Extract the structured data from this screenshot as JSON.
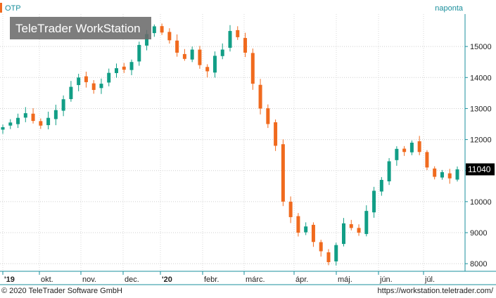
{
  "chart_data": {
    "type": "candlestick",
    "symbol": "OTP",
    "interval": "naponta",
    "watermark": "TeleTrader WorkStation",
    "last_value_label": "11040",
    "ylim": [
      7800,
      16000
    ],
    "y_ticks": [
      8000,
      9000,
      10000,
      11000,
      12000,
      13000,
      14000,
      15000
    ],
    "x_ticks": [
      "'19",
      "okt.",
      "nov.",
      "dec.",
      "'20",
      "febr.",
      "márc.",
      "ápr.",
      "máj.",
      "jún.",
      "júl."
    ],
    "grid": true,
    "colors": {
      "up": "#129e86",
      "down": "#f06a1e",
      "axis": "#1a8f9c",
      "watermark_bg": "#6b6b6b"
    },
    "series": [
      {
        "name": "OTP",
        "close": [
          12400,
          12550,
          12700,
          12850,
          12600,
          12450,
          12700,
          12950,
          13300,
          13700,
          14000,
          13850,
          13600,
          13800,
          14150,
          14300,
          14250,
          14500,
          15050,
          15400,
          15650,
          15450,
          15200,
          14800,
          14600,
          14900,
          14400,
          14200,
          14700,
          14900,
          15500,
          15300,
          14800,
          13800,
          13000,
          12500,
          11800,
          10000,
          9500,
          9000,
          9200,
          8700,
          8400,
          8050,
          8600,
          9300,
          9150,
          9000,
          9700,
          10350,
          10700,
          11300,
          11700,
          11600,
          11900,
          11600,
          11100,
          10800,
          10950,
          10750,
          11040
        ]
      }
    ]
  },
  "footer": {
    "copyright": "© 2020 TeleTrader Software GmbH",
    "url": "https://workstation.teletrader.com/"
  }
}
